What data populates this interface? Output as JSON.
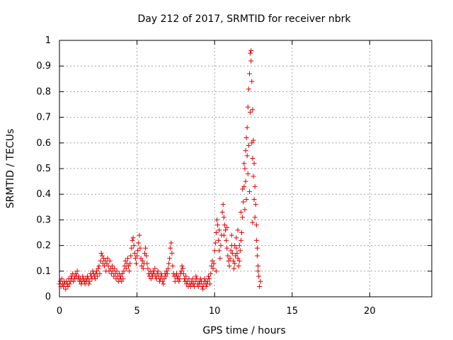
{
  "chart_data": {
    "type": "scatter",
    "title": "Day 212 of 2017, SRMTID for receiver nbrk",
    "xlabel": "GPS time / hours",
    "ylabel": "SRMTID / TECUs",
    "xlim": [
      0,
      24
    ],
    "ylim": [
      0,
      1
    ],
    "xticks": [
      0,
      5,
      10,
      15,
      20
    ],
    "xtick_labels": [
      "0",
      "5",
      "10",
      "15",
      "20"
    ],
    "yticks": [
      0,
      0.1,
      0.2,
      0.3,
      0.4,
      0.5,
      0.6,
      0.7,
      0.8,
      0.9,
      1
    ],
    "ytick_labels": [
      "0",
      "0.1",
      "0.2",
      "0.3",
      "0.4",
      "0.5",
      "0.6",
      "0.7",
      "0.8",
      "0.9",
      "1"
    ],
    "grid": true,
    "marker": "+",
    "color": "#e00000",
    "series": [
      {
        "name": "nbrk",
        "points": [
          [
            0.0,
            0.05
          ],
          [
            0.05,
            0.06
          ],
          [
            0.1,
            0.04
          ],
          [
            0.15,
            0.07
          ],
          [
            0.2,
            0.05
          ],
          [
            0.25,
            0.04
          ],
          [
            0.3,
            0.06
          ],
          [
            0.35,
            0.05
          ],
          [
            0.4,
            0.03
          ],
          [
            0.45,
            0.06
          ],
          [
            0.5,
            0.05
          ],
          [
            0.55,
            0.04
          ],
          [
            0.6,
            0.07
          ],
          [
            0.65,
            0.05
          ],
          [
            0.7,
            0.06
          ],
          [
            0.75,
            0.08
          ],
          [
            0.8,
            0.07
          ],
          [
            0.85,
            0.09
          ],
          [
            0.9,
            0.06
          ],
          [
            0.95,
            0.08
          ],
          [
            1.0,
            0.07
          ],
          [
            1.05,
            0.09
          ],
          [
            1.1,
            0.08
          ],
          [
            1.15,
            0.1
          ],
          [
            1.2,
            0.07
          ],
          [
            1.25,
            0.08
          ],
          [
            1.3,
            0.06
          ],
          [
            1.35,
            0.07
          ],
          [
            1.4,
            0.05
          ],
          [
            1.45,
            0.06
          ],
          [
            1.5,
            0.08
          ],
          [
            1.55,
            0.07
          ],
          [
            1.6,
            0.06
          ],
          [
            1.65,
            0.05
          ],
          [
            1.7,
            0.07
          ],
          [
            1.75,
            0.06
          ],
          [
            1.8,
            0.08
          ],
          [
            1.85,
            0.07
          ],
          [
            1.9,
            0.05
          ],
          [
            1.95,
            0.06
          ],
          [
            2.0,
            0.09
          ],
          [
            2.05,
            0.08
          ],
          [
            2.1,
            0.07
          ],
          [
            2.15,
            0.1
          ],
          [
            2.2,
            0.09
          ],
          [
            2.25,
            0.08
          ],
          [
            2.3,
            0.07
          ],
          [
            2.35,
            0.09
          ],
          [
            2.4,
            0.1
          ],
          [
            2.45,
            0.08
          ],
          [
            2.5,
            0.11
          ],
          [
            2.55,
            0.12
          ],
          [
            2.6,
            0.09
          ],
          [
            2.65,
            0.14
          ],
          [
            2.7,
            0.17
          ],
          [
            2.75,
            0.16
          ],
          [
            2.8,
            0.13
          ],
          [
            2.85,
            0.15
          ],
          [
            2.9,
            0.12
          ],
          [
            2.95,
            0.14
          ],
          [
            3.0,
            0.1
          ],
          [
            3.05,
            0.13
          ],
          [
            3.1,
            0.15
          ],
          [
            3.15,
            0.12
          ],
          [
            3.2,
            0.1
          ],
          [
            3.25,
            0.14
          ],
          [
            3.3,
            0.11
          ],
          [
            3.35,
            0.09
          ],
          [
            3.4,
            0.12
          ],
          [
            3.45,
            0.1
          ],
          [
            3.5,
            0.08
          ],
          [
            3.55,
            0.11
          ],
          [
            3.6,
            0.09
          ],
          [
            3.65,
            0.07
          ],
          [
            3.7,
            0.1
          ],
          [
            3.75,
            0.08
          ],
          [
            3.8,
            0.06
          ],
          [
            3.85,
            0.09
          ],
          [
            3.9,
            0.07
          ],
          [
            3.95,
            0.08
          ],
          [
            4.0,
            0.06
          ],
          [
            4.05,
            0.09
          ],
          [
            4.1,
            0.07
          ],
          [
            4.15,
            0.1
          ],
          [
            4.2,
            0.12
          ],
          [
            4.25,
            0.14
          ],
          [
            4.3,
            0.11
          ],
          [
            4.35,
            0.13
          ],
          [
            4.4,
            0.15
          ],
          [
            4.45,
            0.12
          ],
          [
            4.5,
            0.1
          ],
          [
            4.55,
            0.13
          ],
          [
            4.6,
            0.16
          ],
          [
            4.65,
            0.19
          ],
          [
            4.7,
            0.22
          ],
          [
            4.75,
            0.23
          ],
          [
            4.8,
            0.2
          ],
          [
            4.85,
            0.17
          ],
          [
            4.9,
            0.15
          ],
          [
            4.95,
            0.13
          ],
          [
            5.0,
            0.16
          ],
          [
            5.05,
            0.18
          ],
          [
            5.1,
            0.21
          ],
          [
            5.15,
            0.24
          ],
          [
            5.2,
            0.19
          ],
          [
            5.25,
            0.15
          ],
          [
            5.3,
            0.12
          ],
          [
            5.35,
            0.14
          ],
          [
            5.4,
            0.11
          ],
          [
            5.45,
            0.13
          ],
          [
            5.5,
            0.17
          ],
          [
            5.55,
            0.19
          ],
          [
            5.6,
            0.16
          ],
          [
            5.65,
            0.13
          ],
          [
            5.7,
            0.11
          ],
          [
            5.75,
            0.09
          ],
          [
            5.8,
            0.08
          ],
          [
            5.85,
            0.1
          ],
          [
            5.9,
            0.07
          ],
          [
            5.95,
            0.09
          ],
          [
            6.0,
            0.08
          ],
          [
            6.05,
            0.1
          ],
          [
            6.1,
            0.09
          ],
          [
            6.15,
            0.11
          ],
          [
            6.2,
            0.08
          ],
          [
            6.25,
            0.07
          ],
          [
            6.3,
            0.09
          ],
          [
            6.35,
            0.1
          ],
          [
            6.4,
            0.08
          ],
          [
            6.45,
            0.06
          ],
          [
            6.5,
            0.07
          ],
          [
            6.55,
            0.09
          ],
          [
            6.6,
            0.08
          ],
          [
            6.65,
            0.06
          ],
          [
            6.7,
            0.05
          ],
          [
            6.75,
            0.07
          ],
          [
            6.8,
            0.09
          ],
          [
            6.85,
            0.08
          ],
          [
            6.9,
            0.1
          ],
          [
            6.95,
            0.09
          ],
          [
            7.0,
            0.11
          ],
          [
            7.05,
            0.13
          ],
          [
            7.1,
            0.15
          ],
          [
            7.15,
            0.19
          ],
          [
            7.2,
            0.21
          ],
          [
            7.25,
            0.17
          ],
          [
            7.3,
            0.12
          ],
          [
            7.35,
            0.09
          ],
          [
            7.4,
            0.08
          ],
          [
            7.45,
            0.06
          ],
          [
            7.5,
            0.08
          ],
          [
            7.55,
            0.09
          ],
          [
            7.6,
            0.07
          ],
          [
            7.65,
            0.08
          ],
          [
            7.7,
            0.06
          ],
          [
            7.75,
            0.07
          ],
          [
            7.8,
            0.09
          ],
          [
            7.85,
            0.1
          ],
          [
            7.9,
            0.12
          ],
          [
            7.95,
            0.11
          ],
          [
            8.0,
            0.09
          ],
          [
            8.05,
            0.07
          ],
          [
            8.1,
            0.06
          ],
          [
            8.15,
            0.08
          ],
          [
            8.2,
            0.05
          ],
          [
            8.25,
            0.06
          ],
          [
            8.3,
            0.04
          ],
          [
            8.35,
            0.07
          ],
          [
            8.4,
            0.05
          ],
          [
            8.45,
            0.04
          ],
          [
            8.5,
            0.06
          ],
          [
            8.55,
            0.05
          ],
          [
            8.6,
            0.07
          ],
          [
            8.65,
            0.05
          ],
          [
            8.7,
            0.04
          ],
          [
            8.75,
            0.06
          ],
          [
            8.8,
            0.08
          ],
          [
            8.85,
            0.07
          ],
          [
            8.9,
            0.05
          ],
          [
            8.95,
            0.04
          ],
          [
            9.0,
            0.06
          ],
          [
            9.05,
            0.05
          ],
          [
            9.1,
            0.07
          ],
          [
            9.15,
            0.06
          ],
          [
            9.2,
            0.04
          ],
          [
            9.25,
            0.03
          ],
          [
            9.3,
            0.05
          ],
          [
            9.35,
            0.07
          ],
          [
            9.4,
            0.06
          ],
          [
            9.45,
            0.04
          ],
          [
            9.5,
            0.05
          ],
          [
            9.55,
            0.06
          ],
          [
            9.6,
            0.08
          ],
          [
            9.65,
            0.07
          ],
          [
            9.7,
            0.05
          ],
          [
            9.75,
            0.09
          ],
          [
            9.8,
            0.12
          ],
          [
            9.85,
            0.14
          ],
          [
            9.9,
            0.11
          ],
          [
            9.95,
            0.13
          ],
          [
            10.0,
            0.18
          ],
          [
            10.05,
            0.21
          ],
          [
            10.1,
            0.25
          ],
          [
            10.15,
            0.3
          ],
          [
            10.2,
            0.28
          ],
          [
            10.25,
            0.22
          ],
          [
            10.3,
            0.18
          ],
          [
            10.35,
            0.15
          ],
          [
            10.4,
            0.2
          ],
          [
            10.45,
            0.24
          ],
          [
            10.5,
            0.33
          ],
          [
            10.55,
            0.36
          ],
          [
            10.6,
            0.31
          ],
          [
            10.65,
            0.28
          ],
          [
            10.7,
            0.26
          ],
          [
            10.75,
            0.22
          ],
          [
            10.8,
            0.19
          ],
          [
            10.85,
            0.16
          ],
          [
            10.9,
            0.14
          ],
          [
            10.95,
            0.12
          ],
          [
            11.0,
            0.15
          ],
          [
            11.05,
            0.18
          ],
          [
            11.1,
            0.2
          ],
          [
            11.15,
            0.17
          ],
          [
            11.2,
            0.14
          ],
          [
            11.25,
            0.11
          ],
          [
            11.3,
            0.13
          ],
          [
            11.35,
            0.16
          ],
          [
            11.4,
            0.19
          ],
          [
            11.45,
            0.17
          ],
          [
            11.5,
            0.15
          ],
          [
            11.55,
            0.12
          ],
          [
            11.6,
            0.14
          ],
          [
            11.65,
            0.18
          ],
          [
            11.7,
            0.22
          ],
          [
            11.75,
            0.25
          ],
          [
            11.8,
            0.31
          ],
          [
            11.85,
            0.37
          ],
          [
            11.9,
            0.43
          ],
          [
            11.95,
            0.5
          ],
          [
            12.0,
            0.57
          ],
          [
            12.05,
            0.62
          ],
          [
            12.1,
            0.66
          ],
          [
            12.15,
            0.74
          ],
          [
            12.2,
            0.81
          ],
          [
            12.25,
            0.87
          ],
          [
            12.3,
            0.95
          ],
          [
            12.35,
            0.96
          ],
          [
            12.4,
            0.84
          ],
          [
            12.45,
            0.73
          ],
          [
            12.5,
            0.61
          ],
          [
            12.55,
            0.52
          ],
          [
            12.6,
            0.43
          ],
          [
            12.65,
            0.36
          ],
          [
            12.7,
            0.28
          ],
          [
            12.75,
            0.19
          ],
          [
            12.8,
            0.12
          ],
          [
            12.85,
            0.08
          ],
          [
            12.9,
            0.04
          ],
          [
            12.95,
            0.06
          ],
          [
            10.1,
            0.1
          ],
          [
            10.3,
            0.26
          ],
          [
            10.6,
            0.24
          ],
          [
            10.8,
            0.27
          ],
          [
            11.1,
            0.24
          ],
          [
            11.3,
            0.2
          ],
          [
            11.6,
            0.2
          ],
          [
            11.8,
            0.42
          ],
          [
            11.9,
            0.52
          ],
          [
            12.0,
            0.45
          ],
          [
            12.1,
            0.55
          ],
          [
            12.15,
            0.48
          ],
          [
            12.2,
            0.59
          ],
          [
            12.3,
            0.72
          ],
          [
            12.35,
            0.92
          ],
          [
            12.4,
            0.6
          ],
          [
            12.45,
            0.54
          ],
          [
            12.5,
            0.47
          ],
          [
            12.55,
            0.38
          ],
          [
            12.6,
            0.31
          ],
          [
            12.7,
            0.22
          ],
          [
            12.75,
            0.16
          ],
          [
            12.8,
            0.1
          ],
          [
            11.95,
            0.34
          ],
          [
            12.05,
            0.38
          ],
          [
            12.25,
            0.41
          ],
          [
            12.45,
            0.29
          ],
          [
            11.7,
            0.33
          ],
          [
            11.5,
            0.26
          ],
          [
            11.4,
            0.23
          ]
        ]
      }
    ]
  }
}
